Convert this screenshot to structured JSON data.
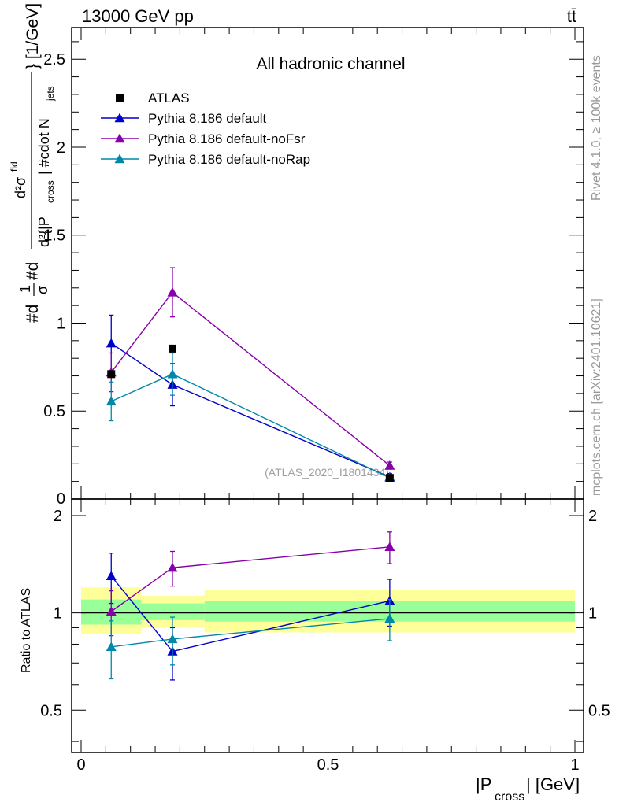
{
  "header": {
    "energy_label": "13000 GeV pp",
    "process_label": "tt̄"
  },
  "side_labels": {
    "rivet": "Rivet 4.1.0, ≥ 100k events",
    "mcplots": "mcplots.cern.ch [arXiv:2401.10621]"
  },
  "watermark": "(ATLAS_2020_I1801434)",
  "colors": {
    "data": "#000000",
    "default": "#0000cc",
    "noFsr": "#8800aa",
    "noRap": "#0088aa",
    "band_inner": "#99ff99",
    "band_outer": "#ffff99"
  },
  "chart_data": [
    {
      "type": "scatter",
      "panel": "main",
      "title": "All hadronic channel",
      "ylabel": "#d¹⁄σ#d d²σᶦⁿᵈ / d²{|P_cross| #cdot N_jets} [1/GeV]",
      "ylabel_parts": {
        "left": "#d",
        "frac_num": "1",
        "frac_den": "σ",
        "mid": "#d",
        "big_num": "d²σ",
        "big_num_sup": "fid",
        "big_den_a": "d²{|P",
        "big_den_sub": "cross",
        "big_den_b": "| #cdot N",
        "big_den_sub2": "jets",
        "right": "} [1/GeV]"
      },
      "xlim": [
        0,
        1
      ],
      "ylim": [
        0,
        2.68
      ],
      "yticks": [
        0.5,
        1,
        1.5,
        2,
        2.5
      ],
      "ytick_labels": [
        "0.5",
        "1",
        "1.5",
        "2",
        "2.5"
      ],
      "ytick_zero_label": "0",
      "series": [
        {
          "name": "ATLAS",
          "key": "data",
          "marker": "square",
          "x": [
            0.061,
            0.185,
            0.625
          ],
          "y": [
            0.71,
            0.855,
            0.12
          ],
          "yerr": [
            0.0,
            0.0,
            0.0
          ]
        },
        {
          "name": "Pythia 8.186 default",
          "key": "default",
          "marker": "triangle",
          "x": [
            0.061,
            0.185,
            0.625
          ],
          "y": [
            0.885,
            0.65,
            0.125
          ],
          "yerr": [
            0.16,
            0.12,
            0.02
          ]
        },
        {
          "name": "Pythia 8.186 default-noFsr",
          "key": "noFsr",
          "marker": "triangle",
          "x": [
            0.061,
            0.185,
            0.625
          ],
          "y": [
            0.72,
            1.175,
            0.19
          ],
          "yerr": [
            0.11,
            0.14,
            0.02
          ]
        },
        {
          "name": "Pythia 8.186 default-noRap",
          "key": "noRap",
          "marker": "triangle",
          "x": [
            0.061,
            0.185,
            0.625
          ],
          "y": [
            0.555,
            0.71,
            0.12
          ],
          "yerr": [
            0.11,
            0.12,
            0.02
          ]
        }
      ]
    },
    {
      "type": "scatter",
      "panel": "ratio",
      "ylabel": "Ratio to ATLAS",
      "xlabel_main": "|P",
      "xlabel_sub": "cross",
      "xlabel_end": "| [GeV]",
      "xlim": [
        0,
        1
      ],
      "ylim": [
        0.37,
        2.25
      ],
      "yscale": "log",
      "yticks": [
        0.5,
        1,
        2
      ],
      "ytick_labels": [
        "0.5",
        "1",
        "2"
      ],
      "xticks": [
        0,
        0.5,
        1
      ],
      "xtick_labels": [
        "0",
        "0.5",
        "1"
      ],
      "bins": [
        {
          "lo": 0.0,
          "hi": 0.122,
          "inner": [
            0.92,
            1.1
          ],
          "outer": [
            0.86,
            1.2
          ]
        },
        {
          "lo": 0.122,
          "hi": 0.25,
          "inner": [
            0.95,
            1.07
          ],
          "outer": [
            0.9,
            1.13
          ]
        },
        {
          "lo": 0.25,
          "hi": 1.0,
          "inner": [
            0.94,
            1.09
          ],
          "outer": [
            0.87,
            1.18
          ]
        }
      ],
      "series": [
        {
          "name": "Pythia 8.186 default",
          "key": "default",
          "x": [
            0.061,
            0.185,
            0.625
          ],
          "y": [
            1.3,
            0.76,
            1.09
          ],
          "yerr": [
            0.23,
            0.14,
            0.18
          ]
        },
        {
          "name": "Pythia 8.186 default-noFsr",
          "key": "noFsr",
          "x": [
            0.061,
            0.185,
            0.625
          ],
          "y": [
            1.01,
            1.38,
            1.6
          ],
          "yerr": [
            0.16,
            0.17,
            0.18
          ]
        },
        {
          "name": "Pythia 8.186 default-noRap",
          "key": "noRap",
          "x": [
            0.061,
            0.185,
            0.625
          ],
          "y": [
            0.785,
            0.83,
            0.96
          ],
          "yerr": [
            0.16,
            0.14,
            0.14
          ]
        }
      ]
    }
  ]
}
